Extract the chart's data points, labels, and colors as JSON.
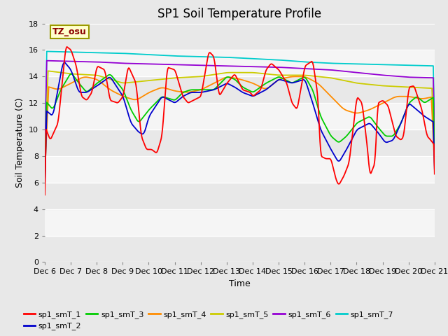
{
  "title": "SP1 Soil Temperature Profile",
  "ylabel": "Soil Temperature (C)",
  "xlabel": "Time",
  "ylim": [
    0,
    18
  ],
  "yticks": [
    0,
    2,
    4,
    6,
    8,
    10,
    12,
    14,
    16,
    18
  ],
  "xtick_labels": [
    "Dec 6",
    "Dec 7",
    "Dec 8",
    "Dec 9",
    "Dec 10",
    "Dec 11",
    "Dec 12",
    "Dec 13",
    "Dec 14",
    "Dec 15",
    "Dec 16",
    "Dec 17",
    "Dec 18",
    "Dec 19",
    "Dec 20",
    "Dec 21"
  ],
  "annotation_text": "TZ_osu",
  "annotation_color": "#8B0000",
  "annotation_bg": "#FFFFCC",
  "annotation_border": "#999900",
  "series_colors": {
    "sp1_smT_1": "#FF0000",
    "sp1_smT_2": "#0000CD",
    "sp1_smT_3": "#00CC00",
    "sp1_smT_4": "#FF8C00",
    "sp1_smT_5": "#CCCC00",
    "sp1_smT_6": "#9400D3",
    "sp1_smT_7": "#00CCCC"
  },
  "title_fontsize": 12,
  "axis_label_fontsize": 9,
  "tick_fontsize": 8
}
